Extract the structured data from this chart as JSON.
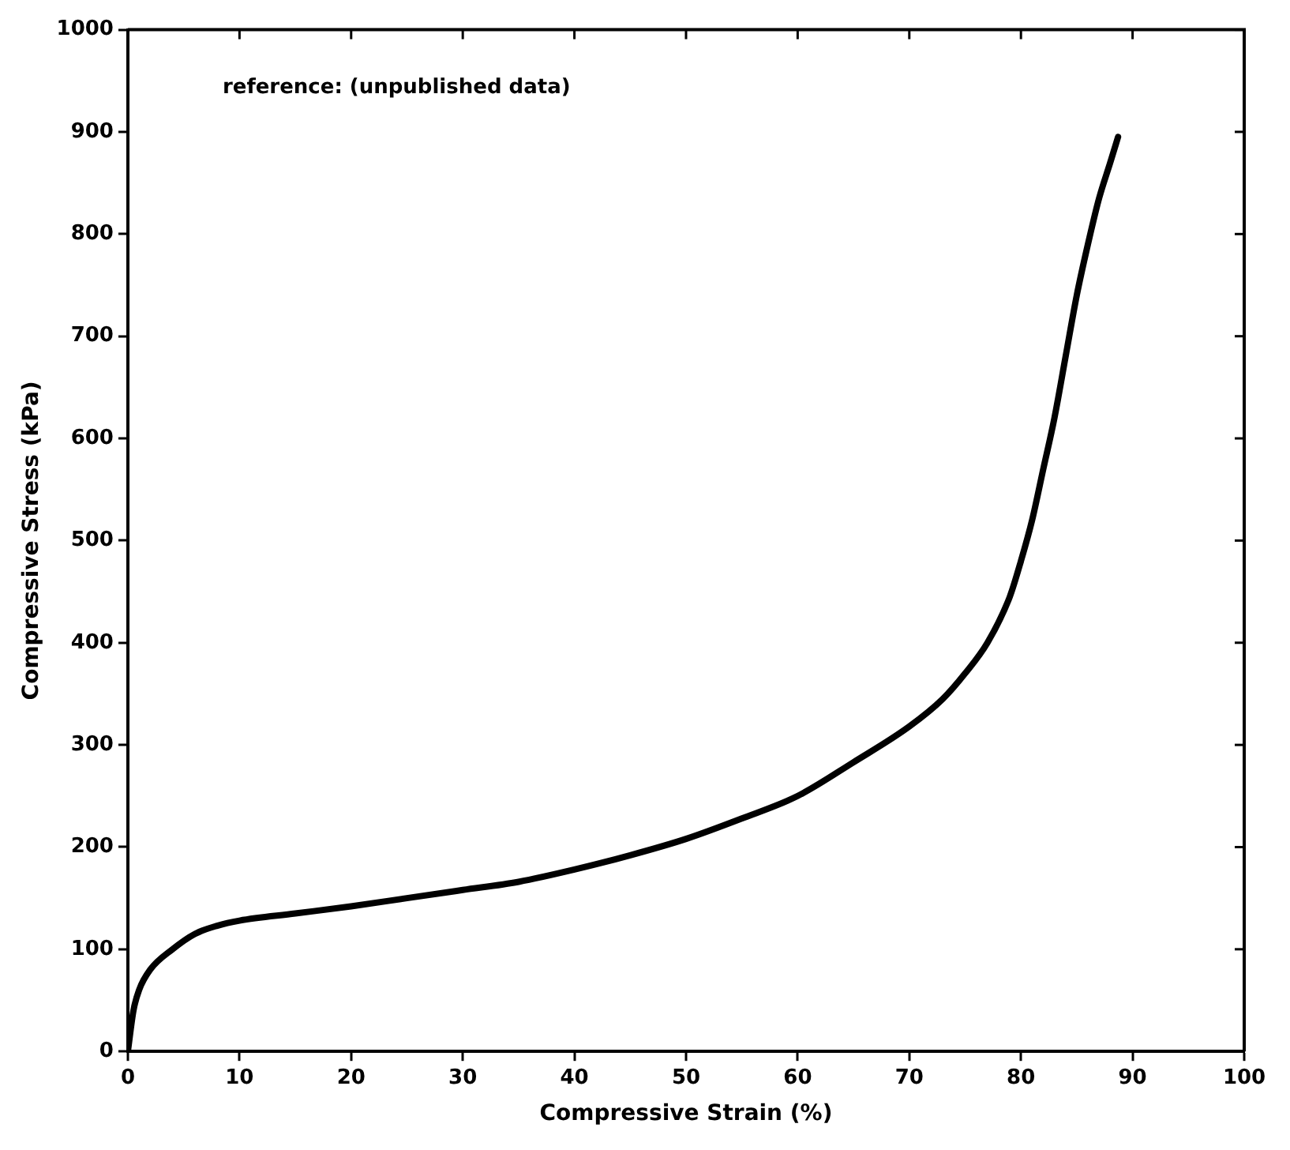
{
  "chart_data": {
    "type": "line",
    "xlabel": "Compressive Strain (%)",
    "ylabel": "Compressive Stress (kPa)",
    "annotations": [
      "reference: (unpublished data)"
    ],
    "xlim": [
      0,
      100
    ],
    "xticks": [
      0,
      10,
      20,
      30,
      40,
      50,
      60,
      70,
      80,
      90,
      100
    ],
    "ylim": [
      0,
      1000
    ],
    "yticks": [
      0,
      100,
      200,
      300,
      400,
      500,
      600,
      700,
      800,
      900,
      1000
    ],
    "grid": false,
    "legend": false,
    "marker": "none",
    "line_style": "solid",
    "series": [
      {
        "color": "#000000",
        "x": [
          0,
          0.5,
          1,
          2,
          4,
          6,
          8,
          10,
          15,
          20,
          25,
          30,
          35,
          40,
          45,
          50,
          55,
          60,
          65,
          70,
          73,
          75,
          77,
          79,
          80,
          81,
          82,
          83,
          84,
          85,
          86,
          87,
          88,
          88.7
        ],
        "values": [
          0,
          40,
          60,
          80,
          100,
          115,
          123,
          128,
          135,
          142,
          150,
          158,
          166,
          178,
          192,
          208,
          228,
          250,
          283,
          318,
          345,
          370,
          400,
          445,
          480,
          520,
          570,
          620,
          680,
          740,
          790,
          835,
          870,
          895
        ]
      }
    ]
  }
}
